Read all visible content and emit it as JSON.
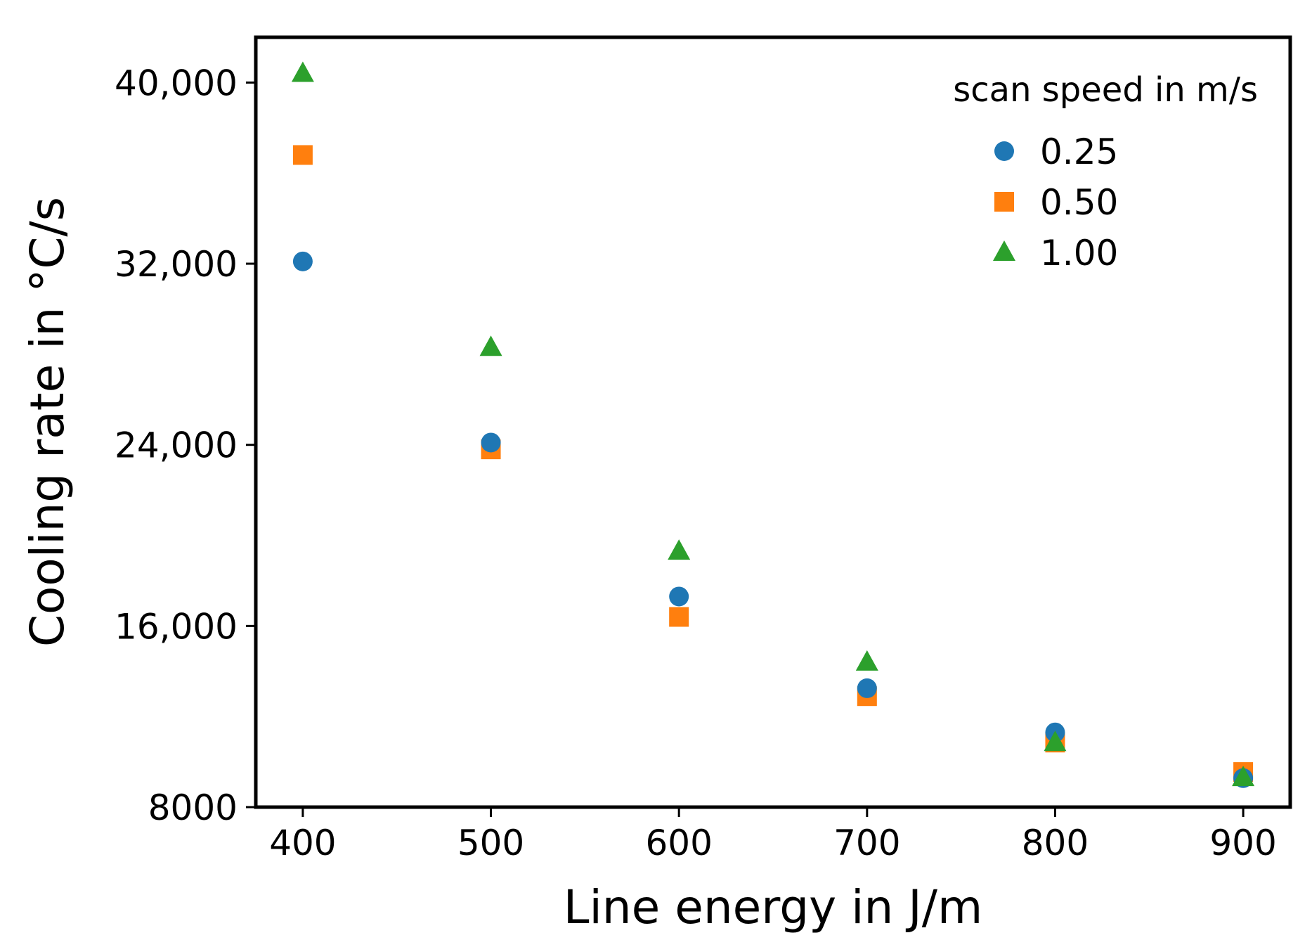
{
  "chart_data": {
    "type": "scatter",
    "title": "",
    "xlabel": "Line energy in J/m",
    "ylabel": "Cooling rate in °C/s",
    "xlim": [
      375,
      925
    ],
    "ylim": [
      8000,
      42000
    ],
    "xticks": [
      400,
      500,
      600,
      700,
      800,
      900
    ],
    "xtick_labels": [
      "400",
      "500",
      "600",
      "700",
      "800",
      "900"
    ],
    "yticks": [
      8000,
      16000,
      24000,
      32000,
      40000
    ],
    "ytick_labels": [
      "8000",
      "16,000",
      "24,000",
      "32,000",
      "40,000"
    ],
    "grid": false,
    "legend": {
      "title": "scan speed in m/s",
      "position": "top-right"
    },
    "series": [
      {
        "name": "0.25",
        "marker": "circle",
        "color": "#1f77b4",
        "x": [
          400,
          500,
          600,
          700,
          800,
          900
        ],
        "values": [
          32100,
          24100,
          17300,
          13250,
          11300,
          9280
        ]
      },
      {
        "name": "0.50",
        "marker": "square",
        "color": "#ff7f0e",
        "x": [
          400,
          500,
          600,
          700,
          800,
          900
        ],
        "values": [
          36800,
          23800,
          16400,
          12900,
          10850,
          9550
        ]
      },
      {
        "name": "1.00",
        "marker": "triangle",
        "color": "#2ca02c",
        "x": [
          400,
          500,
          600,
          700,
          800,
          900
        ],
        "values": [
          40400,
          28300,
          19300,
          14400,
          10850,
          9300
        ]
      }
    ]
  }
}
